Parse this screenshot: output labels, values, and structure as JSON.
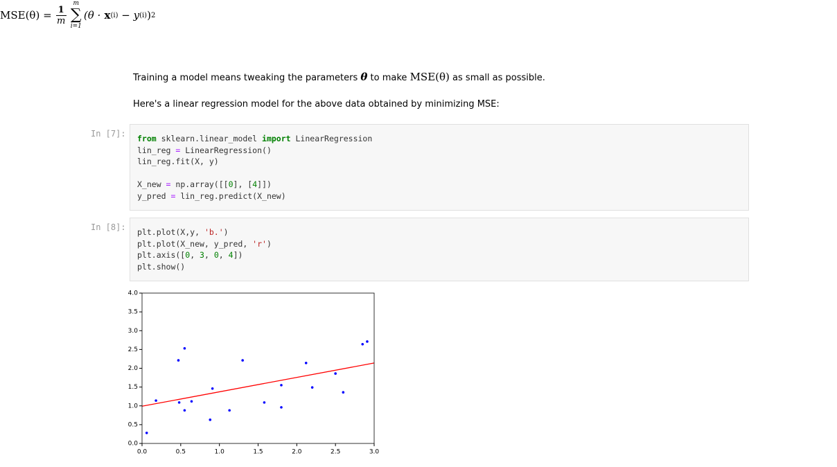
{
  "formula": {
    "lhs": "MSE(θ) =",
    "numerator": "1",
    "denominator": "m",
    "sum_upper": "m",
    "sum_symbol": "∑",
    "sum_lower": "i=1",
    "term_open": "(θ ·",
    "x_symbol": "x",
    "x_superscript": "(i)",
    "term_minus": "− y",
    "y_superscript": "(i)",
    "term_close": ")",
    "exponent": "2"
  },
  "paragraphs": [
    {
      "before": "Training a model means tweaking the parameters",
      "theta": "θ",
      "middle": "to make",
      "mse": "MSE(θ)",
      "after": "as small as possible."
    },
    {
      "text": "Here's a linear regression model for the above data obtained by minimizing MSE:"
    }
  ],
  "cells": [
    {
      "prompt": "In [7]:",
      "lines": [
        [
          {
            "text": "from",
            "color": "#008000",
            "bold": true
          },
          {
            "text": " sklearn.linear_model ",
            "color": "#333333"
          },
          {
            "text": "import",
            "color": "#008000",
            "bold": true
          },
          {
            "text": " LinearRegression",
            "color": "#333333"
          }
        ],
        [
          {
            "text": "lin_reg ",
            "color": "#333333"
          },
          {
            "text": "=",
            "color": "#aa22ff"
          },
          {
            "text": " LinearRegression()",
            "color": "#333333"
          }
        ],
        [
          {
            "text": "lin_reg.fit(X, y)",
            "color": "#333333"
          }
        ],
        [],
        [
          {
            "text": "X_new ",
            "color": "#333333"
          },
          {
            "text": "=",
            "color": "#aa22ff"
          },
          {
            "text": " np.array([[",
            "color": "#333333"
          },
          {
            "text": "0",
            "color": "#008000"
          },
          {
            "text": "], [",
            "color": "#333333"
          },
          {
            "text": "4",
            "color": "#008000"
          },
          {
            "text": "]])",
            "color": "#333333"
          }
        ],
        [
          {
            "text": "y_pred ",
            "color": "#333333"
          },
          {
            "text": "=",
            "color": "#aa22ff"
          },
          {
            "text": " lin_reg.predict(X_new)",
            "color": "#333333"
          }
        ]
      ]
    },
    {
      "prompt": "In [8]:",
      "lines": [
        [
          {
            "text": "plt.plot(X,y, ",
            "color": "#333333"
          },
          {
            "text": "'b.'",
            "color": "#ba2121"
          },
          {
            "text": ")",
            "color": "#333333"
          }
        ],
        [
          {
            "text": "plt.plot(X_new, y_pred, ",
            "color": "#333333"
          },
          {
            "text": "'r'",
            "color": "#ba2121"
          },
          {
            "text": ")",
            "color": "#333333"
          }
        ],
        [
          {
            "text": "plt.axis([",
            "color": "#333333"
          },
          {
            "text": "0",
            "color": "#008000"
          },
          {
            "text": ", ",
            "color": "#333333"
          },
          {
            "text": "3",
            "color": "#008000"
          },
          {
            "text": ", ",
            "color": "#333333"
          },
          {
            "text": "0",
            "color": "#008000"
          },
          {
            "text": ", ",
            "color": "#333333"
          },
          {
            "text": "4",
            "color": "#008000"
          },
          {
            "text": "])",
            "color": "#333333"
          }
        ],
        [
          {
            "text": "plt.show()",
            "color": "#333333"
          }
        ]
      ]
    }
  ],
  "chart_data": {
    "type": "line",
    "xlim": [
      0,
      3
    ],
    "ylim": [
      0,
      4
    ],
    "xticks": [
      {
        "value": 0,
        "label": "0.0"
      },
      0.5,
      {
        "value": 1,
        "label": "1.0"
      },
      1.5,
      {
        "value": 2,
        "label": "2.0"
      },
      2.5,
      {
        "value": 3,
        "label": "3.0"
      }
    ],
    "yticks": [
      {
        "value": 0,
        "label": "0.0"
      },
      0.5,
      {
        "value": 1,
        "label": "1.0"
      },
      1.5,
      {
        "value": 2,
        "label": "2.0"
      },
      2.5,
      {
        "value": 3,
        "label": "3.0"
      },
      3.5,
      {
        "value": 4,
        "label": "4.0"
      }
    ],
    "grid": false,
    "series": [
      {
        "color": "#0000ff",
        "style": "dots",
        "x": [
          0.06,
          0.18,
          0.47,
          0.48,
          0.55,
          0.55,
          0.64,
          0.88,
          0.91,
          1.13,
          1.3,
          1.58,
          1.8,
          1.8,
          2.12,
          2.2,
          2.5,
          2.6,
          2.85,
          2.91
        ],
        "values": [
          0.28,
          1.14,
          2.21,
          1.09,
          2.53,
          0.88,
          1.12,
          0.63,
          1.46,
          0.88,
          2.21,
          1.09,
          1.55,
          0.96,
          2.14,
          1.49,
          1.86,
          1.36,
          2.64,
          2.71
        ]
      },
      {
        "color": "#ff0000",
        "style": "line",
        "x": [
          0,
          3
        ],
        "values": [
          0.99,
          2.14
        ]
      }
    ]
  }
}
